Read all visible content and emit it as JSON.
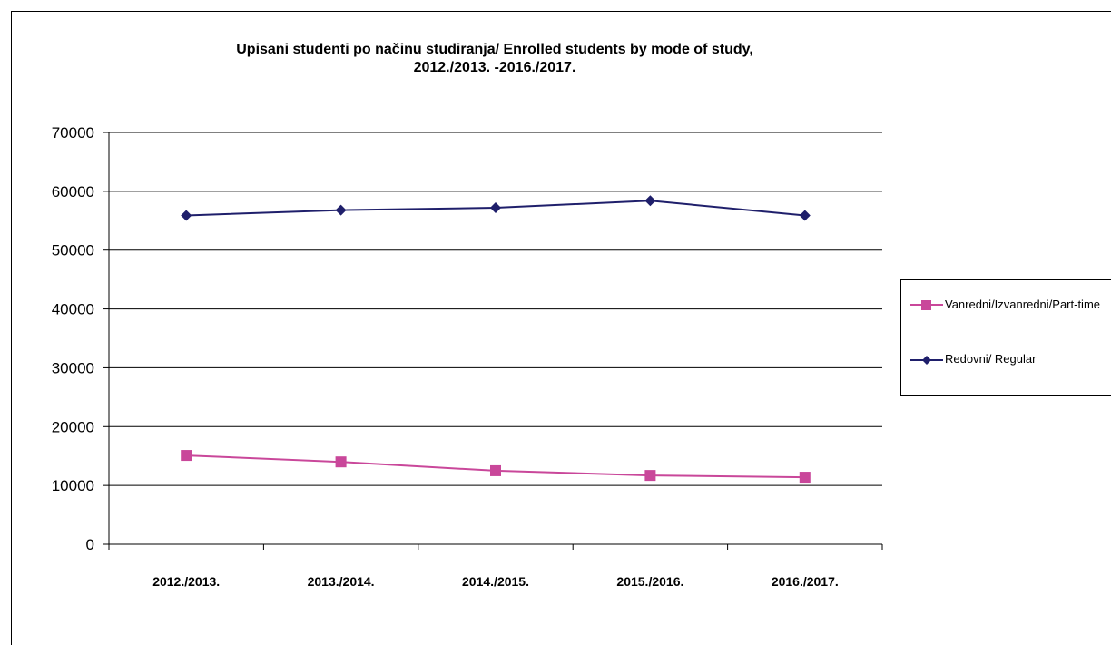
{
  "chart_data": {
    "type": "line",
    "title_lines": [
      "Upisani studenti po načinu studiranja/ Enrolled students by mode of study,",
      "2012./2013. -2016./2017."
    ],
    "categories": [
      "2012./2013.",
      "2013./2014.",
      "2014./2015.",
      "2015./2016.",
      "2016./2017."
    ],
    "y_ticks": [
      "0",
      "10000",
      "20000",
      "30000",
      "40000",
      "50000",
      "60000",
      "70000"
    ],
    "ylim": [
      0,
      70000
    ],
    "grid": "horizontal",
    "legend_position": "right",
    "series": [
      {
        "name": "Redovni/ Regular",
        "marker": "diamond",
        "color": "#1f1f6b",
        "values": [
          55900,
          56800,
          57200,
          58400,
          55900
        ]
      },
      {
        "name": "Vanredni/Izvanredni/Part-time",
        "marker": "square",
        "color": "#c9479a",
        "values": [
          15100,
          14000,
          12500,
          11700,
          11400
        ]
      }
    ]
  },
  "legend": {
    "items": [
      {
        "label": "Vanredni/Izvanredni/Part-time",
        "marker": "square",
        "color": "#c9479a"
      },
      {
        "label": "Redovni/ Regular",
        "marker": "diamond",
        "color": "#1f1f6b"
      }
    ]
  }
}
